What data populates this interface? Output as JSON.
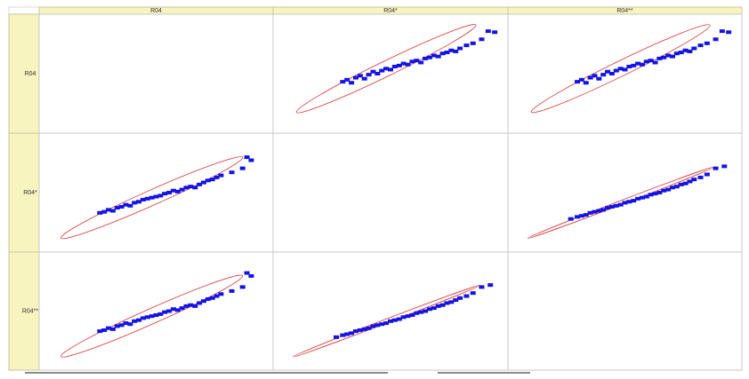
{
  "chart_data": {
    "type": "scatter",
    "variables": [
      "R04",
      "R04*",
      "R04**"
    ],
    "axis_range": [
      0,
      100
    ],
    "grid": false,
    "panels": [
      {
        "row": 0,
        "col": 1,
        "x": [
          28,
          30,
          32,
          34,
          36,
          38,
          40,
          42,
          44,
          46,
          48,
          50,
          52,
          54,
          56,
          58,
          60,
          62,
          64,
          66,
          68,
          70,
          72,
          74,
          76,
          78,
          80,
          82,
          85,
          88,
          92,
          95,
          98
        ],
        "y": [
          42,
          44,
          41,
          46,
          48,
          45,
          49,
          52,
          50,
          53,
          55,
          54,
          57,
          58,
          60,
          59,
          62,
          63,
          61,
          65,
          66,
          68,
          67,
          70,
          71,
          73,
          72,
          75,
          78,
          80,
          84,
          92,
          91
        ]
      },
      {
        "row": 0,
        "col": 2,
        "x": [
          28,
          30,
          32,
          34,
          36,
          38,
          40,
          42,
          44,
          46,
          48,
          50,
          52,
          54,
          56,
          58,
          60,
          62,
          64,
          66,
          68,
          70,
          72,
          74,
          76,
          78,
          80,
          82,
          85,
          88,
          92,
          95,
          98
        ],
        "y": [
          42,
          44,
          41,
          46,
          48,
          45,
          49,
          52,
          50,
          53,
          55,
          54,
          57,
          58,
          60,
          59,
          62,
          63,
          61,
          65,
          66,
          68,
          67,
          70,
          71,
          73,
          72,
          75,
          78,
          80,
          84,
          92,
          91
        ]
      },
      {
        "row": 1,
        "col": 0,
        "x": [
          24,
          26,
          28,
          30,
          32,
          34,
          36,
          38,
          40,
          42,
          44,
          46,
          48,
          50,
          52,
          54,
          56,
          58,
          60,
          62,
          64,
          66,
          68,
          70,
          72,
          74,
          76,
          78,
          80,
          85,
          90,
          92,
          94
        ],
        "y": [
          30,
          31,
          33,
          32,
          35,
          36,
          38,
          37,
          40,
          41,
          43,
          44,
          45,
          46,
          47,
          49,
          50,
          52,
          51,
          53,
          55,
          56,
          55,
          58,
          60,
          62,
          63,
          65,
          67,
          70,
          74,
          85,
          82
        ]
      },
      {
        "row": 1,
        "col": 2,
        "x": [
          25,
          28,
          30,
          32,
          34,
          36,
          38,
          40,
          42,
          44,
          46,
          48,
          50,
          52,
          54,
          56,
          58,
          60,
          62,
          64,
          66,
          68,
          70,
          72,
          74,
          76,
          78,
          80,
          82,
          85,
          88,
          92,
          96
        ],
        "y": [
          24,
          26,
          27,
          28,
          30,
          31,
          32,
          33,
          35,
          36,
          37,
          38,
          40,
          41,
          42,
          44,
          45,
          46,
          48,
          49,
          50,
          52,
          53,
          55,
          56,
          58,
          59,
          61,
          63,
          65,
          68,
          74,
          76
        ]
      },
      {
        "row": 2,
        "col": 0,
        "x": [
          24,
          26,
          28,
          30,
          32,
          34,
          36,
          38,
          40,
          42,
          44,
          46,
          48,
          50,
          52,
          54,
          56,
          58,
          60,
          62,
          64,
          66,
          68,
          70,
          72,
          74,
          76,
          78,
          80,
          85,
          90,
          92,
          94
        ],
        "y": [
          30,
          31,
          33,
          32,
          35,
          36,
          38,
          37,
          40,
          41,
          43,
          44,
          45,
          46,
          47,
          49,
          50,
          52,
          51,
          53,
          55,
          56,
          55,
          58,
          60,
          62,
          63,
          65,
          67,
          70,
          74,
          88,
          85
        ]
      },
      {
        "row": 2,
        "col": 1,
        "x": [
          25,
          28,
          30,
          32,
          34,
          36,
          38,
          40,
          42,
          44,
          46,
          48,
          50,
          52,
          54,
          56,
          58,
          60,
          62,
          64,
          66,
          68,
          70,
          72,
          74,
          76,
          78,
          80,
          82,
          85,
          88,
          92,
          96
        ],
        "y": [
          24,
          26,
          27,
          28,
          30,
          31,
          32,
          33,
          35,
          36,
          37,
          38,
          40,
          41,
          42,
          44,
          45,
          46,
          48,
          49,
          50,
          52,
          53,
          55,
          56,
          58,
          59,
          61,
          63,
          65,
          68,
          74,
          76
        ]
      }
    ],
    "ellipses": [
      {
        "row": 0,
        "col": 1,
        "cx": 48,
        "cy": 55,
        "rx": 46,
        "ry": 3.5,
        "angle_deg": 26
      },
      {
        "row": 0,
        "col": 2,
        "cx": 48,
        "cy": 55,
        "rx": 46,
        "ry": 3.5,
        "angle_deg": 26
      },
      {
        "row": 1,
        "col": 0,
        "cx": 48,
        "cy": 45,
        "rx": 46,
        "ry": 3.5,
        "angle_deg": 24
      },
      {
        "row": 1,
        "col": 2,
        "cx": 48,
        "cy": 40,
        "rx": 46,
        "ry": 0.9,
        "angle_deg": 21
      },
      {
        "row": 2,
        "col": 0,
        "cx": 48,
        "cy": 45,
        "rx": 46,
        "ry": 3.5,
        "angle_deg": 24
      },
      {
        "row": 2,
        "col": 1,
        "cx": 48,
        "cy": 40,
        "rx": 46,
        "ry": 0.9,
        "angle_deg": 21
      }
    ],
    "point_color": "#1313e6",
    "ellipse_color": "#e03030"
  }
}
